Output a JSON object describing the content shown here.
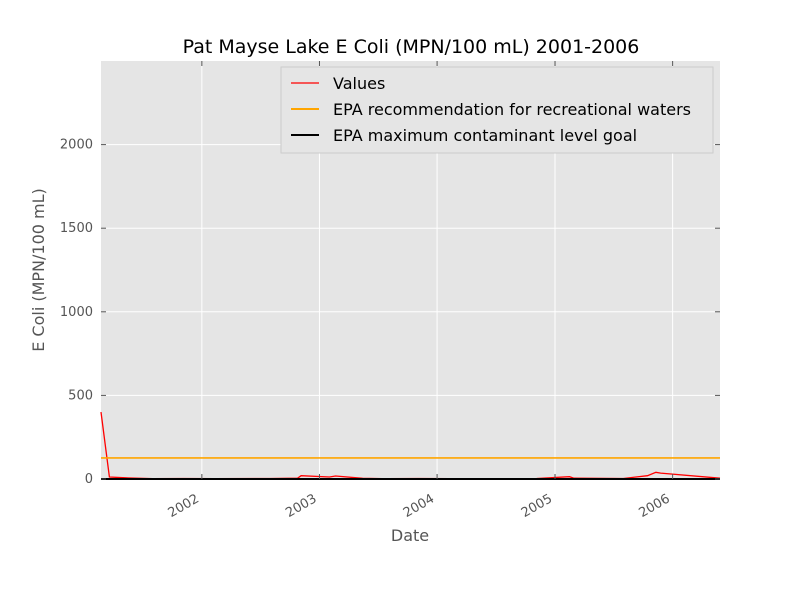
{
  "chart_data": {
    "type": "line",
    "title": "Pat Mayse Lake E Coli (MPN/100 mL) 2001-2006",
    "xlabel": "Date",
    "ylabel": "E Coli (MPN/100 mL)",
    "xlim": [
      "2001-02-22",
      "2006-05-28"
    ],
    "ylim": [
      0,
      2500
    ],
    "xticks": [
      "2002",
      "2003",
      "2004",
      "2005",
      "2006"
    ],
    "yticks": [
      "0",
      "500",
      "1000",
      "1500",
      "2000"
    ],
    "grid": true,
    "legend_position": "top-right",
    "background": "#e5e5e5",
    "series": [
      {
        "name": "Values",
        "color": "#ff0000",
        "points": [
          [
            "2001-02-22",
            400
          ],
          [
            "2001-03-20",
            12
          ],
          [
            "2001-05-01",
            8
          ],
          [
            "2001-08-01",
            2
          ],
          [
            "2001-11-05",
            3
          ],
          [
            "2002-02-10",
            2
          ],
          [
            "2002-08-01",
            3
          ],
          [
            "2002-10-25",
            5
          ],
          [
            "2002-11-05",
            20
          ],
          [
            "2003-02-01",
            12
          ],
          [
            "2003-02-20",
            18
          ],
          [
            "2003-05-15",
            4
          ],
          [
            "2003-08-01",
            2
          ],
          [
            "2003-11-05",
            3
          ],
          [
            "2004-02-10",
            2
          ],
          [
            "2004-08-01",
            2
          ],
          [
            "2004-11-05",
            3
          ],
          [
            "2005-02-15",
            14
          ],
          [
            "2005-03-01",
            5
          ],
          [
            "2005-08-01",
            3
          ],
          [
            "2005-10-15",
            20
          ],
          [
            "2005-11-10",
            40
          ],
          [
            "2005-11-25",
            35
          ],
          [
            "2006-05-28",
            5
          ]
        ]
      },
      {
        "name": "EPA recommendation for recreational waters",
        "color": "#ffa500",
        "constant": 126
      },
      {
        "name": "EPA maximum contaminant level goal",
        "color": "#000000",
        "constant": 0
      }
    ]
  }
}
